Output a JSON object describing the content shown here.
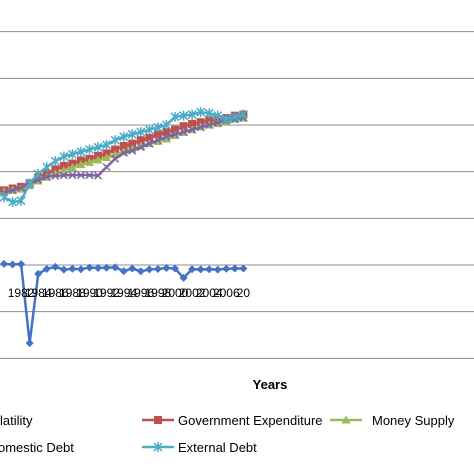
{
  "chart_data": {
    "type": "line",
    "title": "",
    "xlabel": "Years",
    "ylabel": "",
    "grid": true,
    "legend_position": "bottom",
    "ylim": [
      -35,
      115
    ],
    "ygrid_values": [
      110,
      90,
      70,
      50,
      30,
      10,
      -10,
      -30
    ],
    "x": [
      1980,
      1981,
      1982,
      1983,
      1984,
      1985,
      1986,
      1987,
      1988,
      1989,
      1990,
      1991,
      1992,
      1993,
      1994,
      1995,
      1996,
      1997,
      1998,
      1999,
      2000,
      2001,
      2002,
      2003,
      2004,
      2005,
      2006,
      2007,
      2008
    ],
    "xtick_labels": [
      "1982",
      "1984",
      "1986",
      "1988",
      "1990",
      "1992",
      "1994",
      "1996",
      "1998",
      "2000",
      "2002",
      "2004",
      "2006",
      "20"
    ],
    "series": [
      {
        "name": "Volatility",
        "legend_label": "latility",
        "color": "#4472C4",
        "marker": "diamond",
        "values": [
          10.5,
          10.2,
          10.4,
          -23.5,
          6.2,
          8.3,
          9.2,
          8.0,
          8.4,
          8.2,
          8.9,
          8.7,
          8.8,
          9.0,
          7.4,
          8.5,
          7.3,
          8.1,
          8.3,
          8.7,
          8.5,
          4.5,
          8.2,
          8.1,
          8.2,
          8.0,
          8.4,
          8.5,
          8.5
        ]
      },
      {
        "name": "Government Expenditure",
        "legend_label": "Government Expenditure",
        "color": "#C0504D",
        "marker": "square",
        "values": [
          42,
          42.8,
          43.5,
          45,
          47.6,
          49.2,
          51,
          52.5,
          53.5,
          54.8,
          55.5,
          56.8,
          57.8,
          59.5,
          61,
          62,
          63.5,
          64.5,
          66,
          67,
          68,
          69.5,
          70.5,
          71.2,
          72,
          72.5,
          73,
          74,
          74.5
        ]
      },
      {
        "name": "Money Supply",
        "legend_label": "Money Supply",
        "color": "#9BBB59",
        "marker": "triangle",
        "values": [
          41.5,
          42,
          42.5,
          44,
          46,
          47.6,
          49,
          50.5,
          51.8,
          53,
          54,
          55,
          56,
          57.3,
          58.5,
          59.7,
          61,
          62,
          63,
          64,
          65.5,
          66.8,
          68,
          69.2,
          70,
          70.6,
          71.5,
          72.5,
          73
        ]
      },
      {
        "name": "Domestic Debt",
        "legend_label": "omestic Debt",
        "color": "#8064A2",
        "marker": "x",
        "values": [
          41,
          42,
          43,
          45,
          46.5,
          47.8,
          48.2,
          48.4,
          48.5,
          48.5,
          48.5,
          48.3,
          52,
          55.5,
          58,
          59,
          60.5,
          62,
          63.5,
          65,
          66,
          67,
          68,
          69,
          70,
          71,
          72,
          72.5,
          73
        ]
      },
      {
        "name": "External Debt",
        "legend_label": "External Debt",
        "color": "#4BACC6",
        "marker": "star",
        "values": [
          39,
          37,
          37.5,
          45,
          49,
          52,
          54.5,
          56.5,
          57.5,
          58.5,
          59.5,
          60.5,
          61.5,
          63.5,
          65,
          66,
          67,
          68,
          69,
          70,
          73.5,
          74,
          74.5,
          75.5,
          75,
          74,
          72.5,
          73.5,
          74.5
        ]
      }
    ]
  }
}
